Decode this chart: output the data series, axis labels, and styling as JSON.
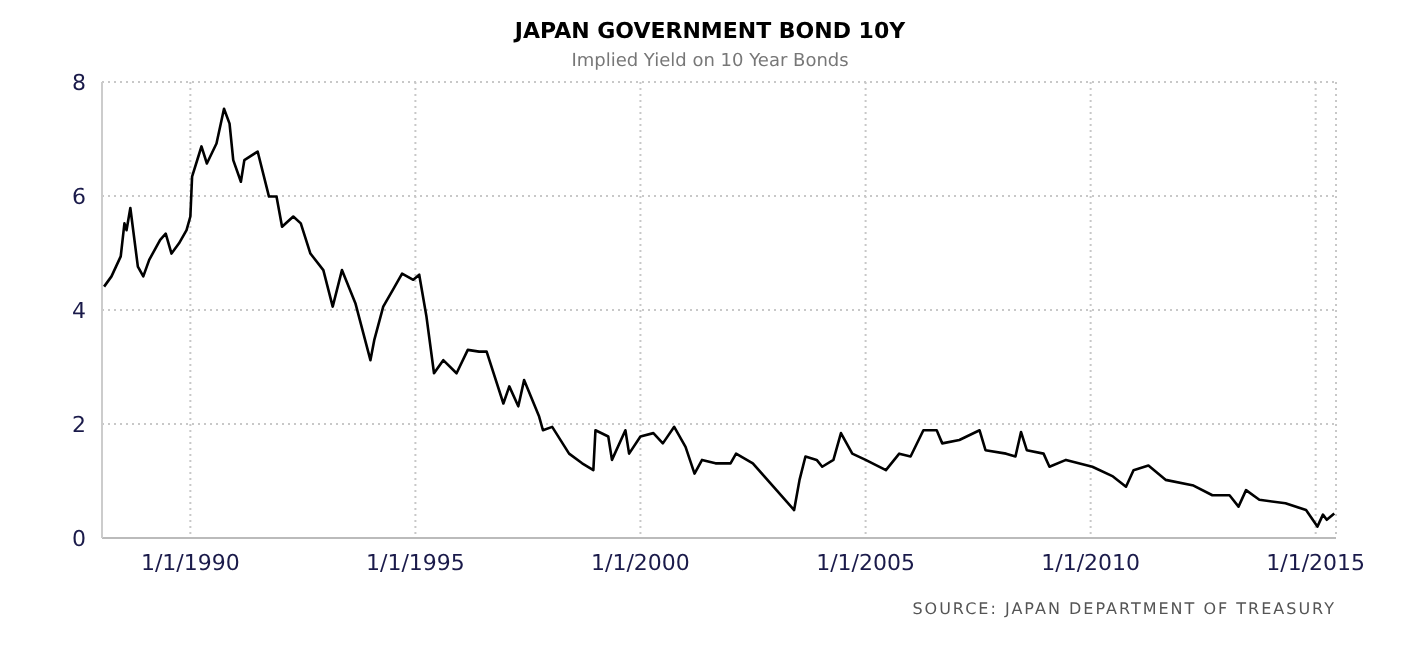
{
  "chart_data": {
    "type": "line",
    "title": "JAPAN GOVERNMENT BOND 10Y",
    "subtitle": "Implied Yield on 10 Year Bonds",
    "annotations": [
      "SOURCE: JAPAN DEPARTMENT OF TREASURY"
    ],
    "x": [
      "1988-02-01",
      "1988-04-01",
      "1988-06-15",
      "1988-07-15",
      "1988-08-01",
      "1988-09-01",
      "1988-11-01",
      "1988-12-15",
      "1989-02-01",
      "1989-05-01",
      "1989-06-15",
      "1989-08-01",
      "1989-10-01",
      "1989-12-01",
      "1990-01-01",
      "1990-01-15",
      "1990-03-15",
      "1990-04-01",
      "1990-05-15",
      "1990-08-01",
      "1990-10-01",
      "1990-11-15",
      "1990-12-15",
      "1991-02-15",
      "1991-03-15",
      "1991-07-01",
      "1991-10-01",
      "1991-12-01",
      "1992-01-15",
      "1992-04-15",
      "1992-06-15",
      "1992-09-01",
      "1992-12-15",
      "1993-03-01",
      "1993-05-15",
      "1993-09-01",
      "1994-01-01",
      "1994-02-01",
      "1994-04-15",
      "1994-07-01",
      "1994-09-15",
      "1994-12-15",
      "1995-02-01",
      "1995-04-01",
      "1995-06-01",
      "1995-08-15",
      "1995-12-01",
      "1996-03-01",
      "1996-06-01",
      "1996-08-01",
      "1996-12-15",
      "1997-02-01",
      "1997-04-15",
      "1997-06-01",
      "1997-10-01",
      "1997-11-01",
      "1998-01-15",
      "1998-06-01",
      "1998-09-15",
      "1998-12-15",
      "1999-01-01",
      "1999-04-15",
      "1999-05-15",
      "1999-09-01",
      "1999-10-01",
      "2000-01-01",
      "2000-04-15",
      "2000-07-01",
      "2000-10-01",
      "2001-01-01",
      "2001-03-15",
      "2001-05-15",
      "2001-09-01",
      "2002-01-01",
      "2002-02-15",
      "2002-07-01",
      "2002-12-15",
      "2003-06-01",
      "2003-07-15",
      "2003-09-01",
      "2003-12-01",
      "2004-01-15",
      "2004-04-15",
      "2004-06-15",
      "2004-09-15",
      "2005-01-01",
      "2005-06-15",
      "2005-10-01",
      "2006-01-01",
      "2006-04-15",
      "2006-08-01",
      "2006-09-15",
      "2007-02-01",
      "2007-07-15",
      "2007-09-01",
      "2008-02-15",
      "2008-05-01",
      "2008-06-15",
      "2008-08-01",
      "2008-12-15",
      "2009-02-01",
      "2009-06-15",
      "2010-01-15",
      "2010-07-01",
      "2010-10-15",
      "2010-12-15",
      "2011-04-15",
      "2011-09-01",
      "2012-04-15",
      "2012-09-15",
      "2013-02-01",
      "2013-04-15",
      "2013-06-15",
      "2013-10-01",
      "2014-05-01",
      "2014-10-15",
      "2015-01-15",
      "2015-03-01",
      "2015-04-01",
      "2015-06-01"
    ],
    "series": [
      {
        "color": "#000000",
        "values": [
          4.41,
          4.59,
          4.94,
          5.52,
          5.4,
          5.79,
          4.76,
          4.59,
          4.88,
          5.23,
          5.34,
          4.99,
          5.17,
          5.4,
          5.64,
          6.34,
          6.75,
          6.87,
          6.57,
          6.92,
          7.53,
          7.27,
          6.63,
          6.25,
          6.63,
          6.78,
          5.99,
          5.99,
          5.46,
          5.64,
          5.52,
          4.99,
          4.7,
          4.06,
          4.7,
          4.12,
          3.12,
          3.47,
          4.06,
          4.35,
          4.64,
          4.53,
          4.62,
          3.88,
          2.89,
          3.12,
          2.89,
          3.3,
          3.27,
          3.27,
          2.36,
          2.66,
          2.31,
          2.77,
          2.13,
          1.89,
          1.95,
          1.48,
          1.31,
          1.19,
          1.89,
          1.78,
          1.37,
          1.89,
          1.48,
          1.78,
          1.84,
          1.66,
          1.95,
          1.6,
          1.13,
          1.37,
          1.31,
          1.31,
          1.48,
          1.31,
          0.9,
          0.49,
          1.02,
          1.43,
          1.37,
          1.25,
          1.37,
          1.84,
          1.48,
          1.37,
          1.19,
          1.48,
          1.43,
          1.89,
          1.89,
          1.66,
          1.72,
          1.89,
          1.54,
          1.48,
          1.43,
          1.86,
          1.54,
          1.48,
          1.25,
          1.37,
          1.25,
          1.08,
          0.9,
          1.19,
          1.27,
          1.02,
          0.92,
          0.75,
          0.75,
          0.55,
          0.84,
          0.67,
          0.61,
          0.49,
          0.2,
          0.41,
          0.32,
          0.43
        ]
      }
    ],
    "xlim": [
      "1988-01-15",
      "2015-06-15"
    ],
    "xticks": [
      {
        "value": "1990-01-01",
        "label": "1/1/1990"
      },
      {
        "value": "1995-01-01",
        "label": "1/1/1995"
      },
      {
        "value": "2000-01-01",
        "label": "1/1/2000"
      },
      {
        "value": "2005-01-01",
        "label": "1/1/2005"
      },
      {
        "value": "2010-01-01",
        "label": "1/1/2010"
      },
      {
        "value": "2015-01-01",
        "label": "1/1/2015"
      }
    ],
    "ylim": [
      0,
      8
    ],
    "yticks": [
      0,
      2,
      4,
      6,
      8
    ],
    "grid": true
  }
}
